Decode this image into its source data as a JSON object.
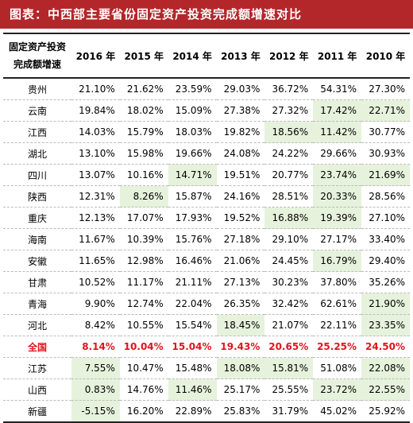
{
  "title": "图表：中西部主要省份固定资产投资完成额增速对比",
  "header": {
    "first_col_line1": "固定资产投资",
    "first_col_line2": "完成额增速",
    "years": [
      "2016 年",
      "2015 年",
      "2014 年",
      "2013 年",
      "2012 年",
      "2011 年",
      "2010 年"
    ]
  },
  "highlight_color": "#e7f2dc",
  "national_color": "#e0141e",
  "rows": [
    {
      "region": "贵州",
      "values": [
        "21.10%",
        "21.62%",
        "23.59%",
        "29.03%",
        "36.72%",
        "54.31%",
        "27.30%"
      ],
      "hl": []
    },
    {
      "region": "云南",
      "values": [
        "19.84%",
        "18.02%",
        "15.09%",
        "27.38%",
        "27.32%",
        "17.42%",
        "22.71%"
      ],
      "hl": [
        5,
        6
      ]
    },
    {
      "region": "江西",
      "values": [
        "14.03%",
        "15.79%",
        "18.03%",
        "19.82%",
        "18.56%",
        "11.42%",
        "30.77%"
      ],
      "hl": [
        4,
        5
      ]
    },
    {
      "region": "湖北",
      "values": [
        "13.10%",
        "15.98%",
        "19.66%",
        "24.08%",
        "24.22%",
        "29.66%",
        "30.93%"
      ],
      "hl": []
    },
    {
      "region": "四川",
      "values": [
        "13.07%",
        "10.16%",
        "14.71%",
        "19.51%",
        "20.77%",
        "23.74%",
        "21.69%"
      ],
      "hl": [
        2,
        5,
        6
      ]
    },
    {
      "region": "陕西",
      "values": [
        "12.31%",
        "8.26%",
        "15.87%",
        "24.16%",
        "28.51%",
        "20.33%",
        "28.56%"
      ],
      "hl": [
        1,
        5
      ]
    },
    {
      "region": "重庆",
      "values": [
        "12.13%",
        "17.07%",
        "17.93%",
        "19.52%",
        "16.88%",
        "19.39%",
        "27.10%"
      ],
      "hl": [
        4,
        5
      ]
    },
    {
      "region": "海南",
      "values": [
        "11.67%",
        "10.39%",
        "15.76%",
        "27.18%",
        "29.10%",
        "27.17%",
        "33.40%"
      ],
      "hl": []
    },
    {
      "region": "安徽",
      "values": [
        "11.65%",
        "12.98%",
        "16.46%",
        "21.06%",
        "24.45%",
        "16.79%",
        "29.40%"
      ],
      "hl": [
        5
      ]
    },
    {
      "region": "甘肃",
      "values": [
        "10.52%",
        "11.17%",
        "21.11%",
        "27.13%",
        "30.23%",
        "37.80%",
        "35.26%"
      ],
      "hl": []
    },
    {
      "region": "青海",
      "values": [
        "9.90%",
        "12.74%",
        "22.04%",
        "26.35%",
        "32.42%",
        "62.61%",
        "21.90%"
      ],
      "hl": [
        6
      ]
    },
    {
      "region": "河北",
      "values": [
        "8.42%",
        "10.55%",
        "15.54%",
        "18.45%",
        "21.07%",
        "22.11%",
        "23.35%"
      ],
      "hl": [
        3,
        6
      ]
    },
    {
      "region": "全国",
      "values": [
        "8.14%",
        "10.04%",
        "15.04%",
        "19.43%",
        "20.65%",
        "25.25%",
        "24.50%"
      ],
      "hl": [],
      "national": true
    },
    {
      "region": "江苏",
      "values": [
        "7.55%",
        "10.47%",
        "15.48%",
        "18.08%",
        "15.81%",
        "51.08%",
        "22.08%"
      ],
      "hl": [
        0,
        3,
        4,
        6
      ]
    },
    {
      "region": "山西",
      "values": [
        "0.83%",
        "14.76%",
        "11.46%",
        "25.17%",
        "25.55%",
        "23.72%",
        "22.55%"
      ],
      "hl": [
        0,
        2,
        5,
        6
      ]
    },
    {
      "region": "新疆",
      "values": [
        "-5.15%",
        "16.20%",
        "22.89%",
        "25.83%",
        "31.79%",
        "45.02%",
        "25.92%"
      ],
      "hl": [
        0
      ]
    }
  ]
}
